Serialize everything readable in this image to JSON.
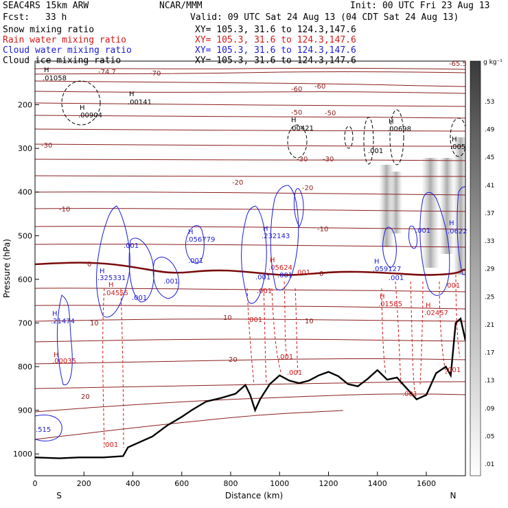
{
  "header": {
    "model": "SEAC4RS 15km ARW",
    "org": "NCAR/MMM",
    "init": "Init: 00 UTC Fri 23 Aug 13",
    "fcst_label": "Fcst:",
    "fcst_value": "33 h",
    "valid": "Valid: 09 UTC Sat 24 Aug 13 (04 CDT Sat 24 Aug 13)"
  },
  "legend": [
    {
      "field": "Snow mixing ratio",
      "xy": "XY= 105.3, 31.6 to 124.3,147.6",
      "color": "#000000"
    },
    {
      "field": "Rain water mixing ratio",
      "xy": "XY= 105.3, 31.6 to 124.3,147.6",
      "color": "#d01818"
    },
    {
      "field": "Cloud water mixing ratio",
      "xy": "XY= 105.3, 31.6 to 124.3,147.6",
      "color": "#1a1ad8"
    },
    {
      "field": "Cloud ice mixing ratio",
      "xy": "XY= 105.3, 31.6 to 124.3,147.6",
      "color": "#000000"
    }
  ],
  "chart_data": {
    "type": "cross-section",
    "xlabel": "Distance (km)",
    "ylabel": "Pressure (hPa)",
    "xlim": [
      0,
      1760
    ],
    "ylim": [
      1050,
      100
    ],
    "x_ticks": [
      0,
      200,
      400,
      600,
      800,
      1000,
      1200,
      1400,
      1600
    ],
    "y_ticks": [
      200,
      300,
      400,
      500,
      600,
      700,
      800,
      900,
      1000
    ],
    "end_labels": {
      "left": "S",
      "right": "N"
    },
    "colorbar": {
      "unit": "g kg⁻¹",
      "labels": [
        ".01",
        ".05",
        ".09",
        ".13",
        ".17",
        ".21",
        ".25",
        ".29",
        ".33",
        ".37",
        ".41",
        ".45",
        ".49",
        ".53"
      ]
    },
    "terrain": [
      [
        0,
        1008
      ],
      [
        100,
        1010
      ],
      [
        180,
        1008
      ],
      [
        280,
        1008
      ],
      [
        360,
        1005
      ],
      [
        380,
        985
      ],
      [
        420,
        975
      ],
      [
        480,
        960
      ],
      [
        540,
        935
      ],
      [
        600,
        915
      ],
      [
        640,
        900
      ],
      [
        700,
        880
      ],
      [
        760,
        872
      ],
      [
        820,
        862
      ],
      [
        860,
        842
      ],
      [
        880,
        865
      ],
      [
        900,
        900
      ],
      [
        920,
        875
      ],
      [
        960,
        840
      ],
      [
        1000,
        820
      ],
      [
        1040,
        832
      ],
      [
        1080,
        838
      ],
      [
        1120,
        832
      ],
      [
        1160,
        820
      ],
      [
        1200,
        812
      ],
      [
        1240,
        822
      ],
      [
        1280,
        840
      ],
      [
        1320,
        845
      ],
      [
        1360,
        828
      ],
      [
        1400,
        808
      ],
      [
        1440,
        830
      ],
      [
        1480,
        825
      ],
      [
        1520,
        850
      ],
      [
        1560,
        875
      ],
      [
        1600,
        865
      ],
      [
        1640,
        815
      ],
      [
        1680,
        800
      ],
      [
        1700,
        820
      ],
      [
        1720,
        700
      ],
      [
        1740,
        690
      ],
      [
        1760,
        740
      ]
    ],
    "temperature_labels": [
      "-74.7",
      "-70",
      "-65.5",
      "-60",
      "-60",
      "-50",
      "-50",
      "-30",
      "-30",
      "-30",
      "-20",
      "-20",
      "-10",
      "-10",
      "0",
      "0",
      "10",
      "10",
      "10",
      "20",
      "20"
    ],
    "snow_labels": [
      "H",
      ".01058",
      "H",
      ".00904",
      "H",
      ".00141",
      "H",
      ".00421",
      "H",
      ".00698",
      ".001",
      "H",
      ".005"
    ],
    "cloud_labels": [
      ".001",
      "H",
      ".325331",
      ".001",
      ".001",
      ".001",
      "H",
      ".056779",
      ".001",
      "H",
      ".232143",
      ".001",
      ".001",
      "H",
      ".059127",
      ".001",
      "H",
      ".0622",
      "H",
      ".21474",
      ".515"
    ],
    "rain_labels": [
      "H",
      ".04555",
      ".001",
      "H",
      ".05624",
      ".001",
      ".001",
      ".001",
      ".001",
      "H",
      ".01585",
      "H",
      ".02457",
      ".001",
      ".001",
      "H",
      ".00035",
      ".001",
      ".001"
    ]
  }
}
